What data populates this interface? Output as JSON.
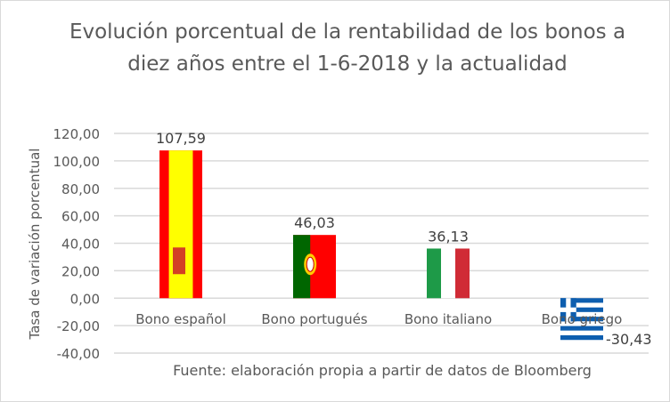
{
  "chart_data": {
    "type": "bar",
    "title": "Evolución porcentual de la rentabilidad de los bonos a diez años entre el 1-6-2018 y la actualidad",
    "ylabel": "Tasa de variación porcentual",
    "xlabel": "",
    "categories": [
      "Bono español",
      "Bono portugués",
      "Bono italiano",
      "Bono griego"
    ],
    "values": [
      107.59,
      46.03,
      36.13,
      -30.43
    ],
    "data_labels": [
      "107,59",
      "46,03",
      "36,13",
      "-30,43"
    ],
    "bar_fills": [
      "spain-flag",
      "portugal-flag",
      "italy-flag",
      "greece-flag"
    ],
    "ylim": [
      -40,
      120
    ],
    "yticks": [
      "-40,00",
      "-20,00",
      "0,00",
      "20,00",
      "40,00",
      "60,00",
      "80,00",
      "100,00",
      "120,00"
    ],
    "ytick_values": [
      -40,
      -20,
      0,
      20,
      40,
      60,
      80,
      100,
      120
    ],
    "grid": true,
    "legend": "none",
    "annotation": "Fuente: elaboración propia a partir de datos de Bloomberg",
    "colors": {
      "text": "#595959",
      "grid": "#d9d9d9"
    }
  }
}
